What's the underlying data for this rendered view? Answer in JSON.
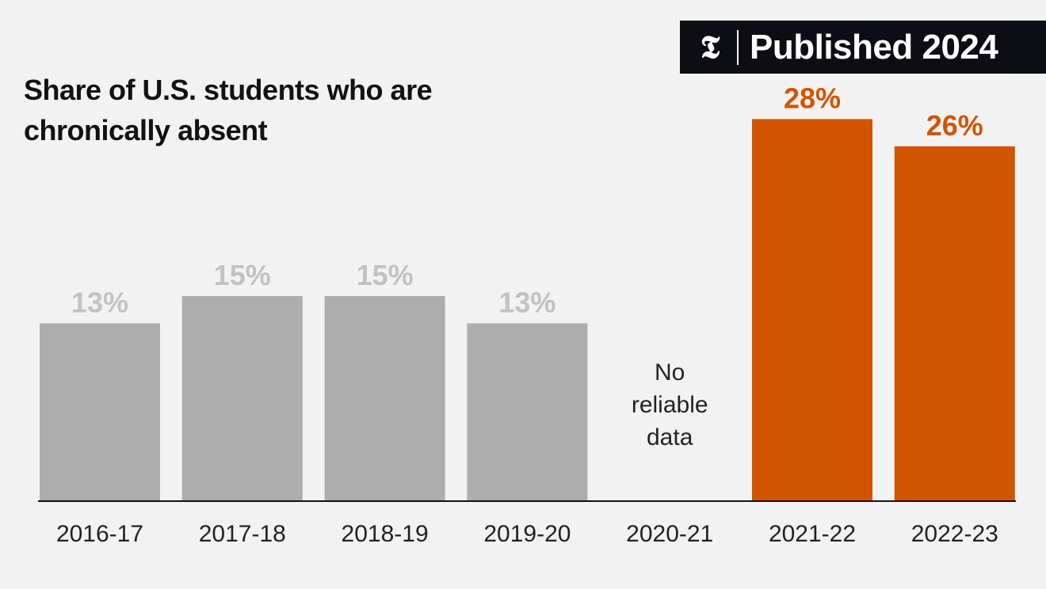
{
  "badge": {
    "logo": "𝕿",
    "text": "Published 2024"
  },
  "chart_data": {
    "type": "bar",
    "title": "Share of U.S. students who are chronically absent",
    "categories": [
      "2016-17",
      "2017-18",
      "2018-19",
      "2019-20",
      "2020-21",
      "2021-22",
      "2022-23"
    ],
    "values": [
      13,
      15,
      15,
      13,
      null,
      28,
      26
    ],
    "value_labels": [
      "13%",
      "15%",
      "15%",
      "13%",
      "",
      "28%",
      "26%"
    ],
    "missing_note": [
      "No",
      "reliable",
      "data"
    ],
    "highlighted": [
      false,
      false,
      false,
      false,
      false,
      true,
      true
    ],
    "xlabel": "",
    "ylabel": "",
    "ylim": [
      0,
      28
    ],
    "grid": false,
    "legend": "none"
  },
  "colors": {
    "base_bar": "#adadad",
    "base_label": "#c2c2c2",
    "highlight_bar": "#d35400",
    "highlight_label": "#d35400",
    "axis": "#121212",
    "background": "#f2f2f2"
  }
}
